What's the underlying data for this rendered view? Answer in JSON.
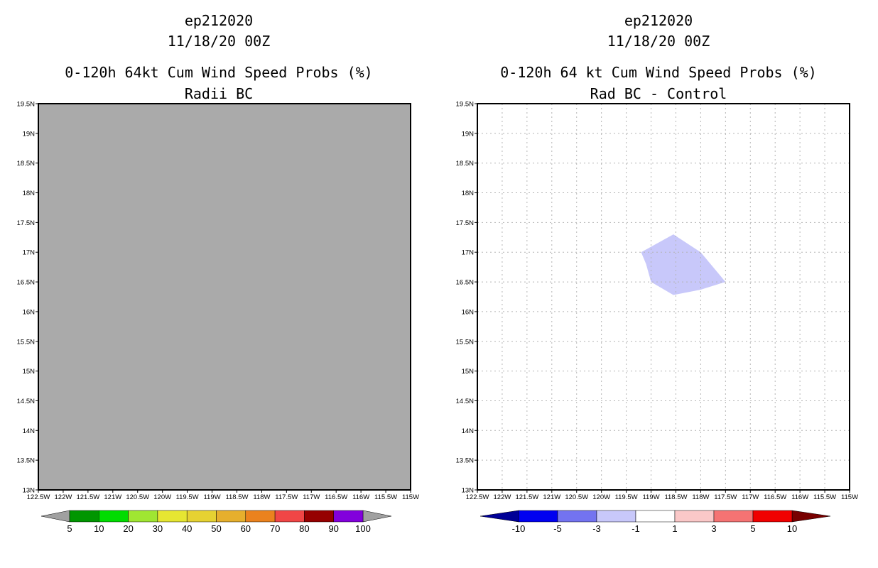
{
  "panels": [
    {
      "id": "left",
      "storm": "ep212020",
      "datetime": "11/18/20 00Z",
      "product_title": "0-120h 64kt Cum Wind Speed Probs (%)",
      "subtitle": "Radii BC",
      "background_color": "#aaaaaa",
      "grid": false
    },
    {
      "id": "right",
      "storm": "ep212020",
      "datetime": "11/18/20 00Z",
      "product_title": "0-120h 64 kt Cum Wind Speed Probs (%)",
      "subtitle": "Rad BC - Control",
      "background_color": "#ffffff",
      "grid": true
    }
  ],
  "chart_data": [
    {
      "type": "heatmap",
      "title": "0-120h 64kt Cum Wind Speed Probs (%)",
      "subtitle": "Radii BC",
      "xlim": [
        -122.5,
        -115.0
      ],
      "ylim": [
        13.0,
        19.5
      ],
      "x_ticks": [
        "122.5W",
        "122W",
        "121.5W",
        "121W",
        "120.5W",
        "120W",
        "119.5W",
        "119W",
        "118.5W",
        "118W",
        "117.5W",
        "117W",
        "116.5W",
        "116W",
        "115.5W",
        "115W"
      ],
      "y_ticks": [
        "13N",
        "13.5N",
        "14N",
        "14.5N",
        "15N",
        "15.5N",
        "16N",
        "16.5N",
        "17N",
        "17.5N",
        "18N",
        "18.5N",
        "19N",
        "19.5N"
      ],
      "field": "uniform",
      "fill_color": "#aaaaaa",
      "colorbar": {
        "labels": [
          "5",
          "10",
          "20",
          "30",
          "40",
          "50",
          "60",
          "70",
          "80",
          "90",
          "100"
        ],
        "colors": [
          "#009600",
          "#00dc00",
          "#a0e632",
          "#e6e632",
          "#e6d232",
          "#e6af2d",
          "#eb821e",
          "#f04646",
          "#960000",
          "#8200dc"
        ],
        "left_arrow_color": "#a0a0a0",
        "right_arrow_color": "#a0a0a0"
      }
    },
    {
      "type": "heatmap",
      "title": "0-120h 64 kt Cum Wind Speed Probs (%)",
      "subtitle": "Rad BC - Control",
      "xlim": [
        -122.5,
        -115.0
      ],
      "ylim": [
        13.0,
        19.5
      ],
      "x_ticks": [
        "122.5W",
        "122W",
        "121.5W",
        "121W",
        "120.5W",
        "120W",
        "119.5W",
        "119W",
        "118.5W",
        "118W",
        "117.5W",
        "117W",
        "116.5W",
        "116W",
        "115.5W",
        "115W"
      ],
      "y_ticks": [
        "13N",
        "13.5N",
        "14N",
        "14.5N",
        "15N",
        "15.5N",
        "16N",
        "16.5N",
        "17N",
        "17.5N",
        "18N",
        "18.5N",
        "19N",
        "19.5N"
      ],
      "field": "anomaly",
      "regions": [
        {
          "category": "-3 to -1",
          "color": "#c8c8fa",
          "polygon_lon_lat": [
            [
              -119.2,
              17.0
            ],
            [
              -118.55,
              17.3
            ],
            [
              -118.0,
              17.0
            ],
            [
              -117.5,
              16.5
            ],
            [
              -118.0,
              16.37
            ],
            [
              -118.55,
              16.28
            ],
            [
              -119.0,
              16.5
            ],
            [
              -119.1,
              16.8
            ]
          ]
        }
      ],
      "colorbar": {
        "labels": [
          "-10",
          "-5",
          "-3",
          "-1",
          "1",
          "3",
          "5",
          "10"
        ],
        "colors": [
          "#0000f0",
          "#7373f0",
          "#c8c8fa",
          "#ffffff",
          "#fac8c8",
          "#f57373",
          "#f00000"
        ],
        "left_arrow_color": "#000096",
        "right_arrow_color": "#780000"
      }
    }
  ]
}
